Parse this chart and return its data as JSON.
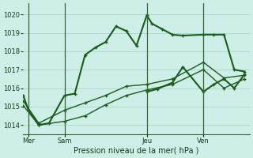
{
  "bg_color": "#ceeee8",
  "grid_color": "#b0d8d0",
  "line_color": "#1a5c1a",
  "xlabel": "Pression niveau de la mer( hPa )",
  "ylim": [
    1013.5,
    1020.6
  ],
  "yticks": [
    1014,
    1015,
    1016,
    1017,
    1018,
    1019,
    1020
  ],
  "day_labels": [
    "Mer",
    "Sam",
    "Jeu",
    "Ven"
  ],
  "day_positions": [
    0.5,
    4.0,
    12.0,
    17.5
  ],
  "vline_positions": [
    0.5,
    4.0,
    12.0,
    17.5
  ],
  "xlim": [
    0,
    22
  ],
  "series": [
    {
      "x": [
        0,
        0.5,
        1.5,
        2.5,
        4.0,
        5.0,
        6.0,
        7.0,
        8.0,
        9.0,
        10.0,
        11.0,
        12.0,
        12.5,
        13.5,
        14.5,
        15.5,
        17.5,
        18.5,
        19.5,
        20.5,
        21.5
      ],
      "y": [
        1015.6,
        1014.8,
        1014.0,
        1014.1,
        1015.6,
        1015.7,
        1017.8,
        1018.2,
        1018.5,
        1019.35,
        1019.1,
        1018.3,
        1019.95,
        1019.5,
        1019.2,
        1018.9,
        1018.85,
        1018.9,
        1018.9,
        1018.9,
        1017.0,
        1016.9
      ],
      "marker": "+",
      "lw": 1.5
    },
    {
      "x": [
        0,
        1.5,
        4.0,
        6.0,
        8.0,
        10.0,
        12.0,
        14.5,
        17.5,
        19.5,
        21.5
      ],
      "y": [
        1015.3,
        1014.1,
        1014.8,
        1015.2,
        1015.6,
        1016.1,
        1016.2,
        1016.5,
        1017.4,
        1016.55,
        1016.7
      ],
      "marker": "+",
      "lw": 1.0
    },
    {
      "x": [
        0,
        1.5,
        4.0,
        6.0,
        8.0,
        10.0,
        12.0,
        14.5,
        17.5,
        19.5,
        21.5
      ],
      "y": [
        1015.05,
        1014.0,
        1014.2,
        1014.5,
        1015.1,
        1015.6,
        1015.9,
        1016.2,
        1017.0,
        1016.0,
        1016.5
      ],
      "marker": "+",
      "lw": 1.0
    },
    {
      "x": [
        12.0,
        13.0,
        14.5,
        15.5,
        17.5,
        18.5,
        19.5,
        20.5,
        21.5
      ],
      "y": [
        1015.8,
        1015.95,
        1016.3,
        1017.15,
        1015.8,
        1016.2,
        1016.5,
        1016.0,
        1016.75
      ],
      "marker": "+",
      "lw": 1.5
    }
  ]
}
